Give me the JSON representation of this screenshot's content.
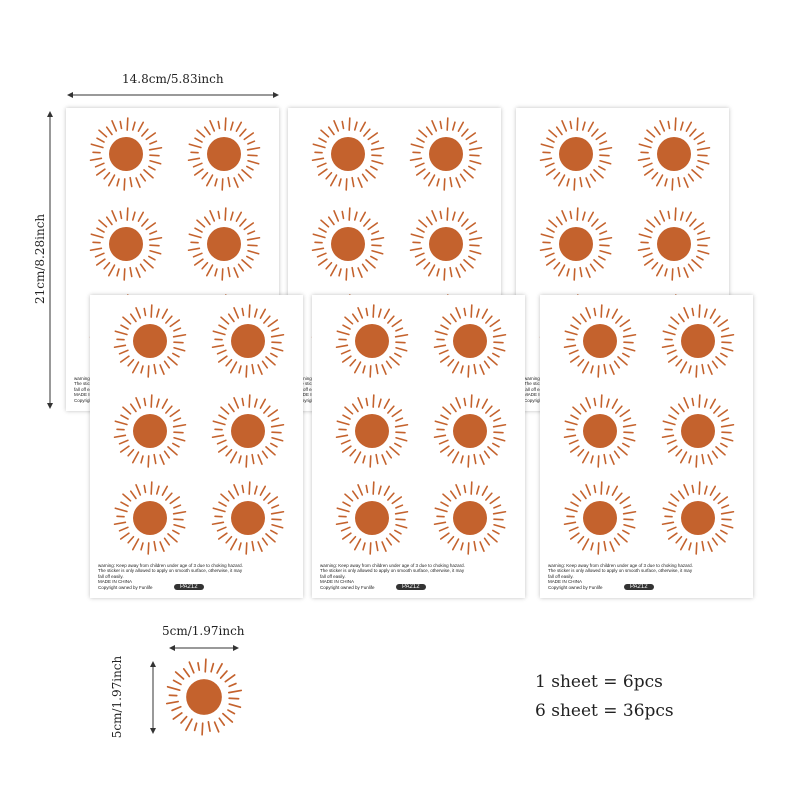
{
  "dimensions": {
    "sheet_width": "14.8cm/5.83inch",
    "sheet_height": "21cm/8.28inch",
    "sun_width": "5cm/1.97inch",
    "sun_height": "5cm/1.97inch"
  },
  "sheet": {
    "warning": "warning: Keep away from children under age of 3 due to choking hazard. The sticker is only allowed to apply on smooth surface, otherwise, it may fall off easily.",
    "made_in": "MADE IN CHINA",
    "copyright": "Copyright owned by Funlife",
    "code": "PA212"
  },
  "quantity": {
    "line1": "1 sheet = 6pcs",
    "line2": "6 sheet = 36pcs"
  },
  "colors": {
    "sun": "#c4622d"
  }
}
